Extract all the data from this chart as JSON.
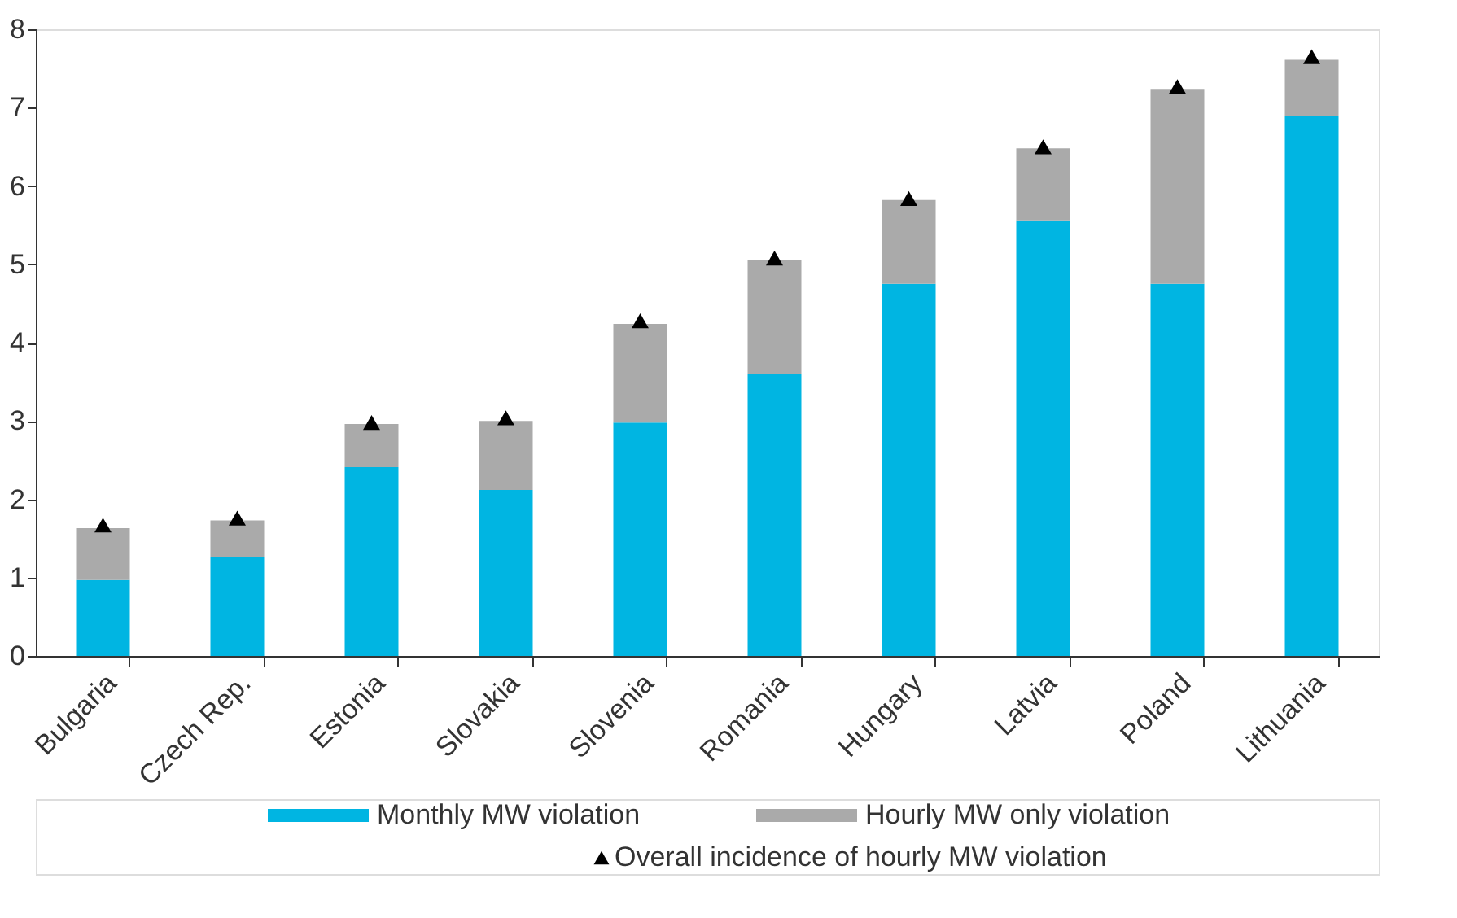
{
  "chart_data": {
    "type": "bar",
    "stacked": true,
    "categories": [
      "Bulgaria",
      "Czech Rep.",
      "Estonia",
      "Slovakia",
      "Slovenia",
      "Romania",
      "Hungary",
      "Latvia",
      "Poland",
      "Lithuania"
    ],
    "series": [
      {
        "name": "Monthly MW violation",
        "color": "#00b5e2",
        "values": [
          0.97,
          1.26,
          2.41,
          2.12,
          2.98,
          3.6,
          4.75,
          5.56,
          4.75,
          6.89
        ]
      },
      {
        "name": "Hourly MW only violation",
        "color": "#aaaaaa",
        "values": [
          0.66,
          0.47,
          0.55,
          0.88,
          1.26,
          1.46,
          1.07,
          0.92,
          2.49,
          0.72
        ]
      },
      {
        "name": "Overall incidence of hourly MW violation",
        "type": "scatter",
        "marker": "triangle",
        "color": "#000000",
        "values": [
          1.67,
          1.76,
          2.98,
          3.04,
          4.28,
          5.08,
          5.84,
          6.5,
          7.27,
          7.65
        ]
      }
    ],
    "ylim": [
      0,
      8
    ],
    "yticks": [
      0,
      1,
      2,
      3,
      4,
      5,
      6,
      7,
      8
    ],
    "grid": false,
    "legend": "bottom"
  }
}
